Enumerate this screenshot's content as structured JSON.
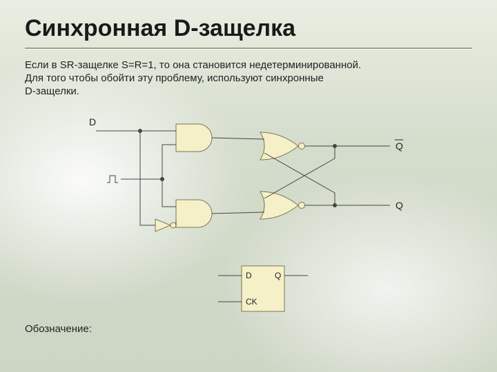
{
  "title": "Синхронная D-защелка",
  "body_line1": "Если в SR-защелке S=R=1, то она становится недетерминированной.",
  "body_line2": "Для того чтобы обойти эту проблему, используют синхронные",
  "body_line3": "D-защелки.",
  "legend_label": "Обозначение:",
  "circuit": {
    "labels": {
      "input_d": "D",
      "output_qbar": "Q",
      "output_q": "Q",
      "clock_pulse": "⎍"
    },
    "colors": {
      "gate_fill": "#f6f0c8",
      "gate_stroke": "#7b7552",
      "wire": "#444444",
      "node_fill": "#444444",
      "text": "#222222"
    },
    "gate_stroke_width": 1,
    "wire_width": 1,
    "symbol_rect": {
      "pins": {
        "d": "D",
        "ck": "CK",
        "q": "Q"
      },
      "fill": "#f6f0c8",
      "stroke": "#7b7552"
    }
  }
}
